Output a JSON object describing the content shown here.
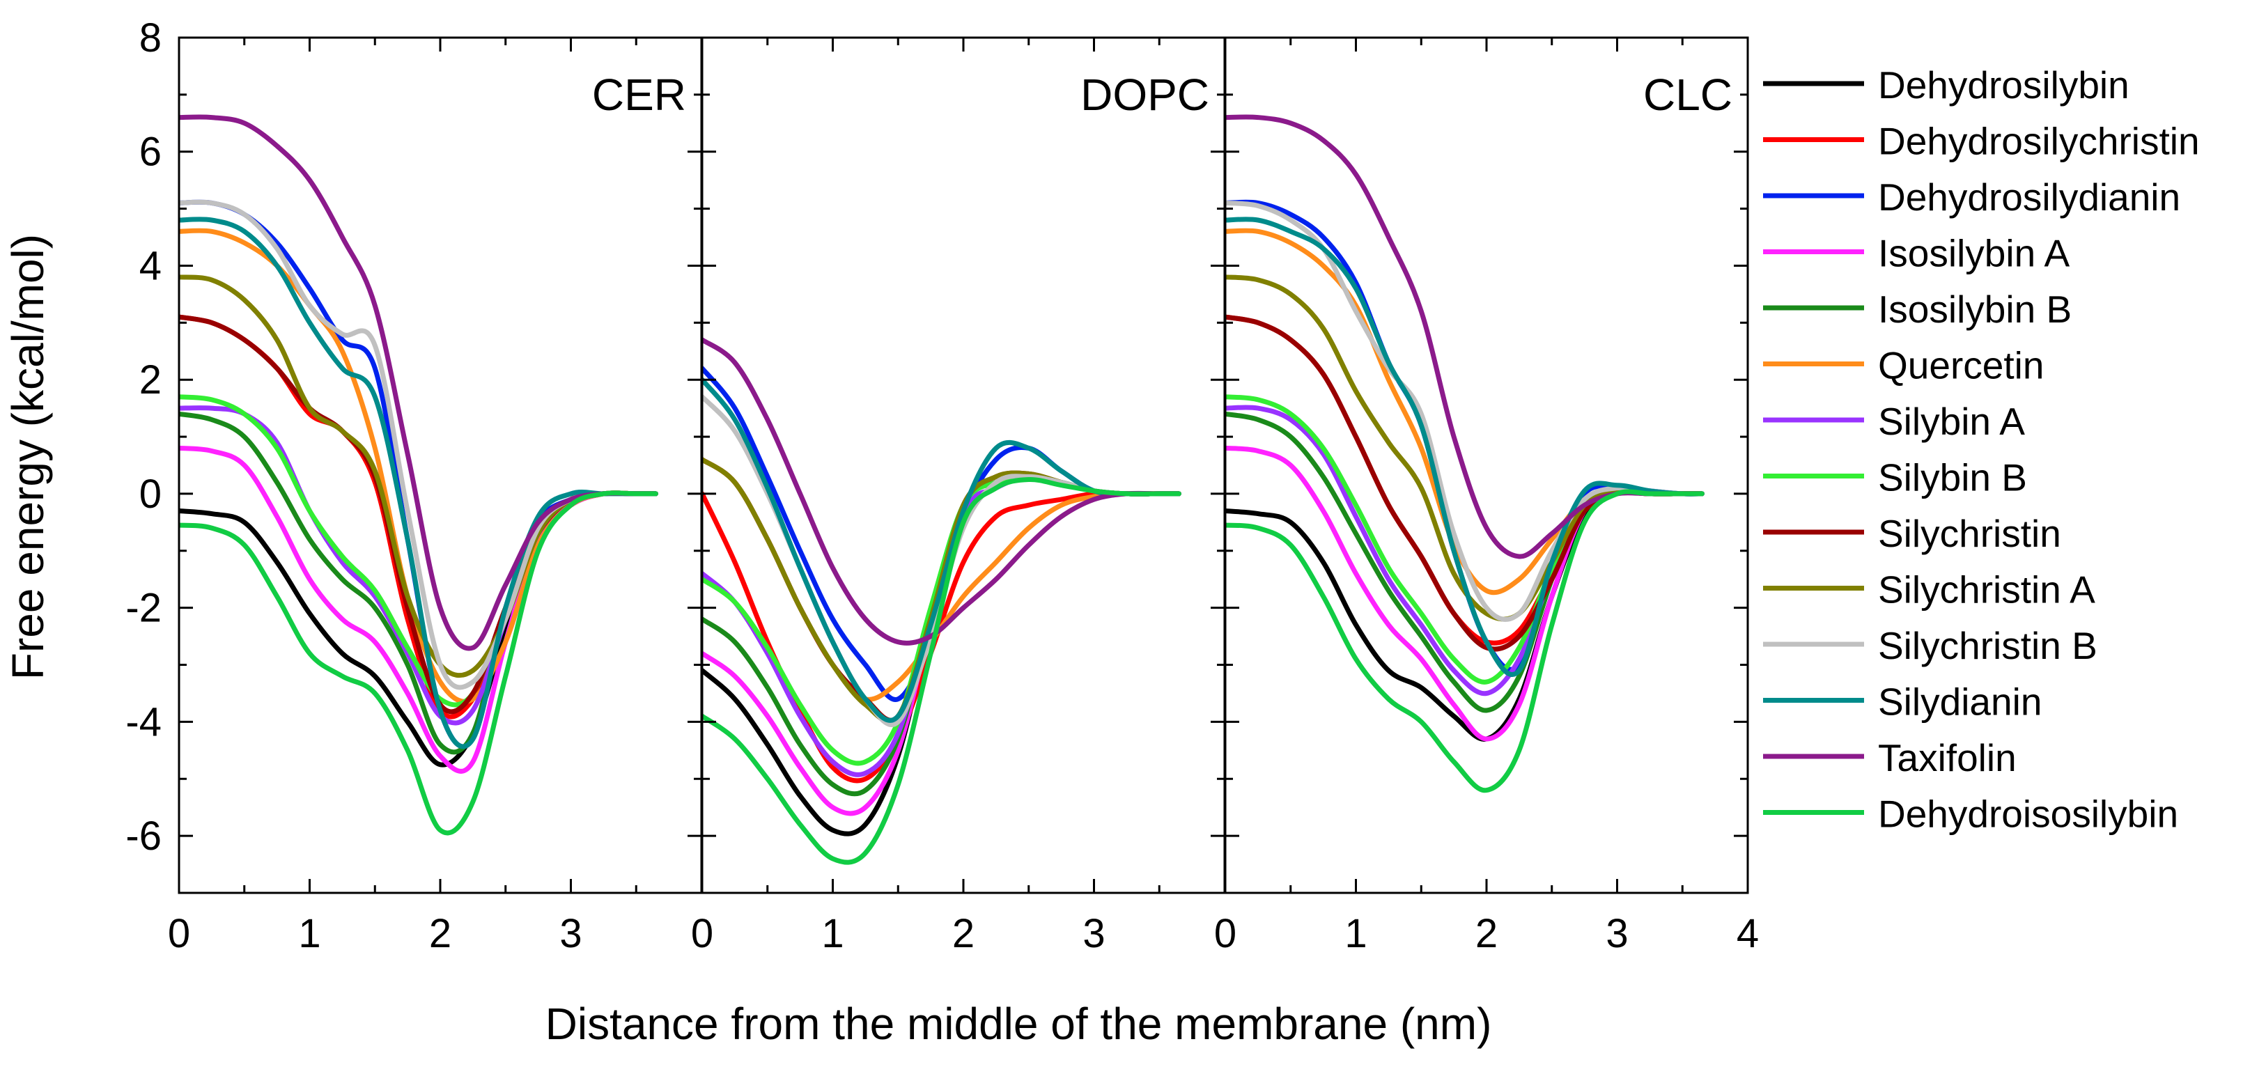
{
  "chart_data": {
    "type": "line",
    "ylabel": "Free energy (kcal/mol)",
    "xlabel": "Distance from the middle of the membrane (nm)",
    "ylim": [
      -7,
      8
    ],
    "yticks": [
      "8",
      "6",
      "4",
      "2",
      "0",
      "-2",
      "-4",
      "-6"
    ],
    "ytick_values": [
      8,
      6,
      4,
      2,
      0,
      -2,
      -4,
      -6
    ],
    "x_per_panel": [
      0,
      0.25,
      0.5,
      0.75,
      1,
      1.25,
      1.5,
      1.75,
      2,
      2.25,
      2.5,
      2.75,
      3,
      3.25,
      3.5,
      3.65
    ],
    "panels": [
      {
        "name": "CER",
        "xlim": [
          0,
          4
        ],
        "xticks": [
          "0",
          "1",
          "2",
          "3"
        ],
        "xtick_values": [
          0,
          1,
          2,
          3
        ],
        "series": [
          {
            "name": "Dehydrosilybin",
            "values": [
              -0.3,
              -0.35,
              -0.5,
              -1.2,
              -2.1,
              -2.8,
              -3.2,
              -4.0,
              -4.75,
              -4.2,
              -2.4,
              -0.8,
              -0.2,
              0,
              0,
              0
            ]
          },
          {
            "name": "Dehydrosilychristin",
            "values": [
              3.1,
              3.0,
              2.7,
              2.2,
              1.4,
              1.1,
              0.2,
              -2.2,
              -3.8,
              -3.6,
              -2.2,
              -0.8,
              -0.2,
              0,
              0,
              0
            ]
          },
          {
            "name": "Dehydrosilydianin",
            "values": [
              5.1,
              5.1,
              4.9,
              4.4,
              3.6,
              2.7,
              2.2,
              -0.8,
              -3.8,
              -4.3,
              -2.0,
              -0.5,
              -0.1,
              0,
              0,
              0
            ]
          },
          {
            "name": "Isosilybin A",
            "values": [
              0.8,
              0.75,
              0.5,
              -0.4,
              -1.5,
              -2.2,
              -2.6,
              -3.5,
              -4.6,
              -4.7,
              -2.6,
              -0.8,
              -0.2,
              0,
              0,
              0
            ]
          },
          {
            "name": "Isosilybin B",
            "values": [
              1.4,
              1.3,
              1.0,
              0.2,
              -0.8,
              -1.5,
              -2.0,
              -3.0,
              -4.4,
              -4.2,
              -2.0,
              -0.6,
              -0.1,
              0,
              0,
              0
            ]
          },
          {
            "name": "Quercetin",
            "values": [
              4.6,
              4.6,
              4.4,
              4.0,
              3.3,
              2.5,
              0.8,
              -1.8,
              -3.3,
              -3.6,
              -2.6,
              -0.9,
              -0.2,
              0,
              0,
              0
            ]
          },
          {
            "name": "Silybin A",
            "values": [
              1.5,
              1.5,
              1.4,
              0.9,
              -0.3,
              -1.2,
              -1.8,
              -2.8,
              -3.9,
              -3.8,
              -2.2,
              -0.7,
              -0.1,
              0,
              0,
              0
            ]
          },
          {
            "name": "Silybin B",
            "values": [
              1.7,
              1.65,
              1.4,
              0.8,
              -0.3,
              -1.1,
              -1.7,
              -2.7,
              -3.6,
              -3.5,
              -2.0,
              -0.6,
              -0.1,
              0,
              0,
              0
            ]
          },
          {
            "name": "Silychristin",
            "values": [
              3.1,
              3.0,
              2.7,
              2.2,
              1.5,
              1.1,
              0.3,
              -2.0,
              -3.7,
              -3.5,
              -2.0,
              -0.7,
              -0.1,
              0,
              0,
              0
            ]
          },
          {
            "name": "Silychristin A",
            "values": [
              3.8,
              3.75,
              3.4,
              2.7,
              1.5,
              1.1,
              0.4,
              -1.8,
              -3.0,
              -3.1,
              -2.2,
              -0.7,
              -0.1,
              0,
              0,
              0
            ]
          },
          {
            "name": "Silychristin B",
            "values": [
              5.1,
              5.1,
              4.9,
              4.3,
              3.3,
              2.8,
              2.6,
              -0.3,
              -3.0,
              -3.3,
              -2.2,
              -0.6,
              -0.1,
              0,
              0,
              0
            ]
          },
          {
            "name": "Silydianin",
            "values": [
              4.8,
              4.8,
              4.6,
              4.0,
              3.0,
              2.2,
              1.7,
              -0.8,
              -3.8,
              -4.3,
              -2.0,
              -0.4,
              0,
              0,
              0,
              0
            ]
          },
          {
            "name": "Taxifolin",
            "values": [
              6.6,
              6.6,
              6.5,
              6.1,
              5.5,
              4.5,
              3.3,
              0.7,
              -2.0,
              -2.7,
              -1.6,
              -0.5,
              -0.1,
              0,
              0,
              0
            ]
          },
          {
            "name": "Dehydroisosilybin",
            "values": [
              -0.55,
              -0.6,
              -0.9,
              -1.8,
              -2.8,
              -3.2,
              -3.5,
              -4.5,
              -5.9,
              -5.4,
              -3.2,
              -1.0,
              -0.2,
              0,
              0,
              0
            ]
          }
        ]
      },
      {
        "name": "DOPC",
        "xlim": [
          0,
          4
        ],
        "xticks": [
          "0",
          "1",
          "2",
          "3"
        ],
        "xtick_values": [
          0,
          1,
          2,
          3
        ],
        "series": [
          {
            "name": "Dehydrosilybin",
            "values": [
              -3.1,
              -3.6,
              -4.4,
              -5.3,
              -5.9,
              -5.8,
              -4.6,
              -2.3,
              -0.2,
              0.2,
              0.3,
              0.2,
              0.05,
              0,
              0,
              0
            ]
          },
          {
            "name": "Dehydrosilychristin",
            "values": [
              0,
              -1.2,
              -2.6,
              -3.8,
              -4.8,
              -5.0,
              -4.3,
              -2.8,
              -1.2,
              -0.4,
              -0.2,
              -0.1,
              0,
              0,
              0,
              0
            ]
          },
          {
            "name": "Dehydrosilydianin",
            "values": [
              2.2,
              1.5,
              0.3,
              -1.0,
              -2.2,
              -3.0,
              -3.6,
              -2.5,
              -0.4,
              0.6,
              0.8,
              0.4,
              0.05,
              0,
              0,
              0
            ]
          },
          {
            "name": "Isosilybin A",
            "values": [
              -2.8,
              -3.2,
              -3.9,
              -4.8,
              -5.5,
              -5.5,
              -4.5,
              -2.3,
              -0.2,
              0.2,
              0.3,
              0.2,
              0.05,
              0,
              0,
              0
            ]
          },
          {
            "name": "Isosilybin B",
            "values": [
              -2.2,
              -2.6,
              -3.4,
              -4.4,
              -5.1,
              -5.2,
              -4.3,
              -2.2,
              -0.2,
              0.2,
              0.3,
              0.2,
              0.05,
              0,
              0,
              0
            ]
          },
          {
            "name": "Quercetin",
            "values": [
              0.6,
              0.2,
              -0.8,
              -2.0,
              -3.0,
              -3.6,
              -3.3,
              -2.6,
              -1.8,
              -1.2,
              -0.6,
              -0.2,
              -0.05,
              0,
              0,
              0
            ]
          },
          {
            "name": "Silybin A",
            "values": [
              -1.4,
              -1.9,
              -2.8,
              -3.9,
              -4.7,
              -4.9,
              -4.2,
              -2.2,
              -0.3,
              0.1,
              0.3,
              0.2,
              0.05,
              0,
              0,
              0
            ]
          },
          {
            "name": "Silybin B",
            "values": [
              -1.5,
              -1.9,
              -2.7,
              -3.7,
              -4.5,
              -4.7,
              -4.0,
              -2.0,
              -0.2,
              0.2,
              0.3,
              0.2,
              0.05,
              0,
              0,
              0
            ]
          },
          {
            "name": "Silychristin",
            "values": [
              0.6,
              0.2,
              -0.8,
              -2.0,
              -3.0,
              -3.6,
              -3.9,
              -2.2,
              -0.2,
              0.3,
              0.35,
              0.2,
              0.05,
              0,
              0,
              0
            ]
          },
          {
            "name": "Silychristin A",
            "values": [
              0.6,
              0.2,
              -0.8,
              -2.0,
              -3.0,
              -3.7,
              -3.9,
              -2.2,
              -0.2,
              0.3,
              0.35,
              0.2,
              0.05,
              0,
              0,
              0
            ]
          },
          {
            "name": "Silychristin B",
            "values": [
              1.7,
              1.1,
              0,
              -1.3,
              -2.6,
              -3.6,
              -4.0,
              -2.5,
              -0.6,
              0.2,
              0.3,
              0.2,
              0.05,
              0,
              0,
              0
            ]
          },
          {
            "name": "Silydianin",
            "values": [
              2.0,
              1.3,
              0.1,
              -1.3,
              -2.6,
              -3.6,
              -3.9,
              -2.3,
              -0.3,
              0.8,
              0.8,
              0.4,
              0.05,
              0,
              0,
              0
            ]
          },
          {
            "name": "Taxifolin",
            "values": [
              2.7,
              2.3,
              1.3,
              0,
              -1.3,
              -2.2,
              -2.6,
              -2.5,
              -2.0,
              -1.5,
              -0.9,
              -0.4,
              -0.1,
              0,
              0,
              0
            ]
          },
          {
            "name": "Dehydroisosilybin",
            "values": [
              -3.9,
              -4.3,
              -5.0,
              -5.8,
              -6.4,
              -6.3,
              -5.1,
              -2.8,
              -0.5,
              0.1,
              0.25,
              0.15,
              0.05,
              0,
              0,
              0
            ]
          }
        ]
      },
      {
        "name": "CLC",
        "xlim": [
          0,
          4
        ],
        "xticks": [
          "0",
          "1",
          "2",
          "3",
          "4"
        ],
        "xtick_values": [
          0,
          1,
          2,
          3,
          4
        ],
        "series": [
          {
            "name": "Dehydrosilybin",
            "values": [
              -0.3,
              -0.35,
              -0.5,
              -1.2,
              -2.3,
              -3.1,
              -3.4,
              -3.9,
              -4.3,
              -3.6,
              -1.8,
              -0.4,
              0,
              0,
              0,
              0
            ]
          },
          {
            "name": "Dehydrosilychristin",
            "values": [
              3.1,
              3.0,
              2.7,
              2.1,
              1.0,
              -0.2,
              -1.1,
              -2.1,
              -2.6,
              -2.4,
              -1.4,
              -0.3,
              0,
              0,
              0,
              0
            ]
          },
          {
            "name": "Dehydrosilydianin",
            "values": [
              5.1,
              5.1,
              4.9,
              4.5,
              3.7,
              2.3,
              1.2,
              -1.0,
              -2.6,
              -3.0,
              -1.2,
              0,
              0.1,
              0.05,
              0,
              0
            ]
          },
          {
            "name": "Isosilybin A",
            "values": [
              0.8,
              0.75,
              0.5,
              -0.3,
              -1.4,
              -2.3,
              -2.9,
              -3.7,
              -4.3,
              -3.7,
              -1.8,
              -0.3,
              0,
              0,
              0,
              0
            ]
          },
          {
            "name": "Isosilybin B",
            "values": [
              1.4,
              1.3,
              1.0,
              0.3,
              -0.7,
              -1.7,
              -2.5,
              -3.3,
              -3.8,
              -3.2,
              -1.5,
              -0.2,
              0.05,
              0,
              0,
              0
            ]
          },
          {
            "name": "Quercetin",
            "values": [
              4.6,
              4.6,
              4.4,
              4.0,
              3.3,
              2.0,
              0.8,
              -0.9,
              -1.7,
              -1.5,
              -0.8,
              -0.1,
              0.05,
              0,
              0,
              0
            ]
          },
          {
            "name": "Silybin A",
            "values": [
              1.5,
              1.5,
              1.3,
              0.7,
              -0.4,
              -1.5,
              -2.3,
              -3.1,
              -3.5,
              -2.9,
              -1.4,
              -0.2,
              0.05,
              0,
              0,
              0
            ]
          },
          {
            "name": "Silybin B",
            "values": [
              1.7,
              1.65,
              1.4,
              0.8,
              -0.2,
              -1.3,
              -2.1,
              -2.9,
              -3.3,
              -2.7,
              -1.3,
              -0.2,
              0.05,
              0,
              0,
              0
            ]
          },
          {
            "name": "Silychristin",
            "values": [
              3.1,
              3.0,
              2.7,
              2.1,
              1.0,
              -0.2,
              -1.1,
              -2.1,
              -2.7,
              -2.5,
              -1.5,
              -0.3,
              0,
              0,
              0,
              0
            ]
          },
          {
            "name": "Silychristin A",
            "values": [
              3.8,
              3.75,
              3.5,
              2.9,
              1.8,
              0.9,
              0.1,
              -1.4,
              -2.1,
              -2.1,
              -1.2,
              -0.2,
              0.05,
              0,
              0,
              0
            ]
          },
          {
            "name": "Silychristin B",
            "values": [
              5.1,
              5.05,
              4.8,
              4.3,
              3.2,
              2.2,
              1.4,
              -0.7,
              -2.0,
              -2.1,
              -1.0,
              -0.1,
              0.1,
              0.05,
              0,
              0
            ]
          },
          {
            "name": "Silydianin",
            "values": [
              4.8,
              4.8,
              4.6,
              4.3,
              3.6,
              2.3,
              1.2,
              -1.0,
              -2.6,
              -3.1,
              -1.2,
              0.05,
              0.15,
              0.05,
              0,
              0
            ]
          },
          {
            "name": "Taxifolin",
            "values": [
              6.6,
              6.6,
              6.5,
              6.2,
              5.6,
              4.5,
              3.2,
              1.0,
              -0.6,
              -1.1,
              -0.7,
              -0.2,
              0,
              0,
              0,
              0
            ]
          },
          {
            "name": "Dehydroisosilybin",
            "values": [
              -0.55,
              -0.6,
              -0.9,
              -1.8,
              -2.9,
              -3.6,
              -4.0,
              -4.7,
              -5.2,
              -4.5,
              -2.3,
              -0.5,
              0,
              0,
              0,
              0
            ]
          }
        ]
      }
    ],
    "legend": {
      "placement": "right",
      "entries": [
        {
          "name": "Dehydrosilybin",
          "color": "#000000"
        },
        {
          "name": "Dehydrosilychristin",
          "color": "#ff0000"
        },
        {
          "name": "Dehydrosilydianin",
          "color": "#0022ee"
        },
        {
          "name": "Isosilybin A",
          "color": "#ff22ff"
        },
        {
          "name": "Isosilybin B",
          "color": "#1a8a1a"
        },
        {
          "name": "Quercetin",
          "color": "#ff8c1a"
        },
        {
          "name": "Silybin A",
          "color": "#9933ff"
        },
        {
          "name": "Silybin B",
          "color": "#33ee33"
        },
        {
          "name": "Silychristin",
          "color": "#990000"
        },
        {
          "name": "Silychristin A",
          "color": "#808000"
        },
        {
          "name": "Silychristin B",
          "color": "#c0c0c0"
        },
        {
          "name": "Silydianin",
          "color": "#008b8b"
        },
        {
          "name": "Taxifolin",
          "color": "#8b1a8b"
        },
        {
          "name": "Dehydroisosilybin",
          "color": "#11cc44"
        }
      ]
    }
  }
}
